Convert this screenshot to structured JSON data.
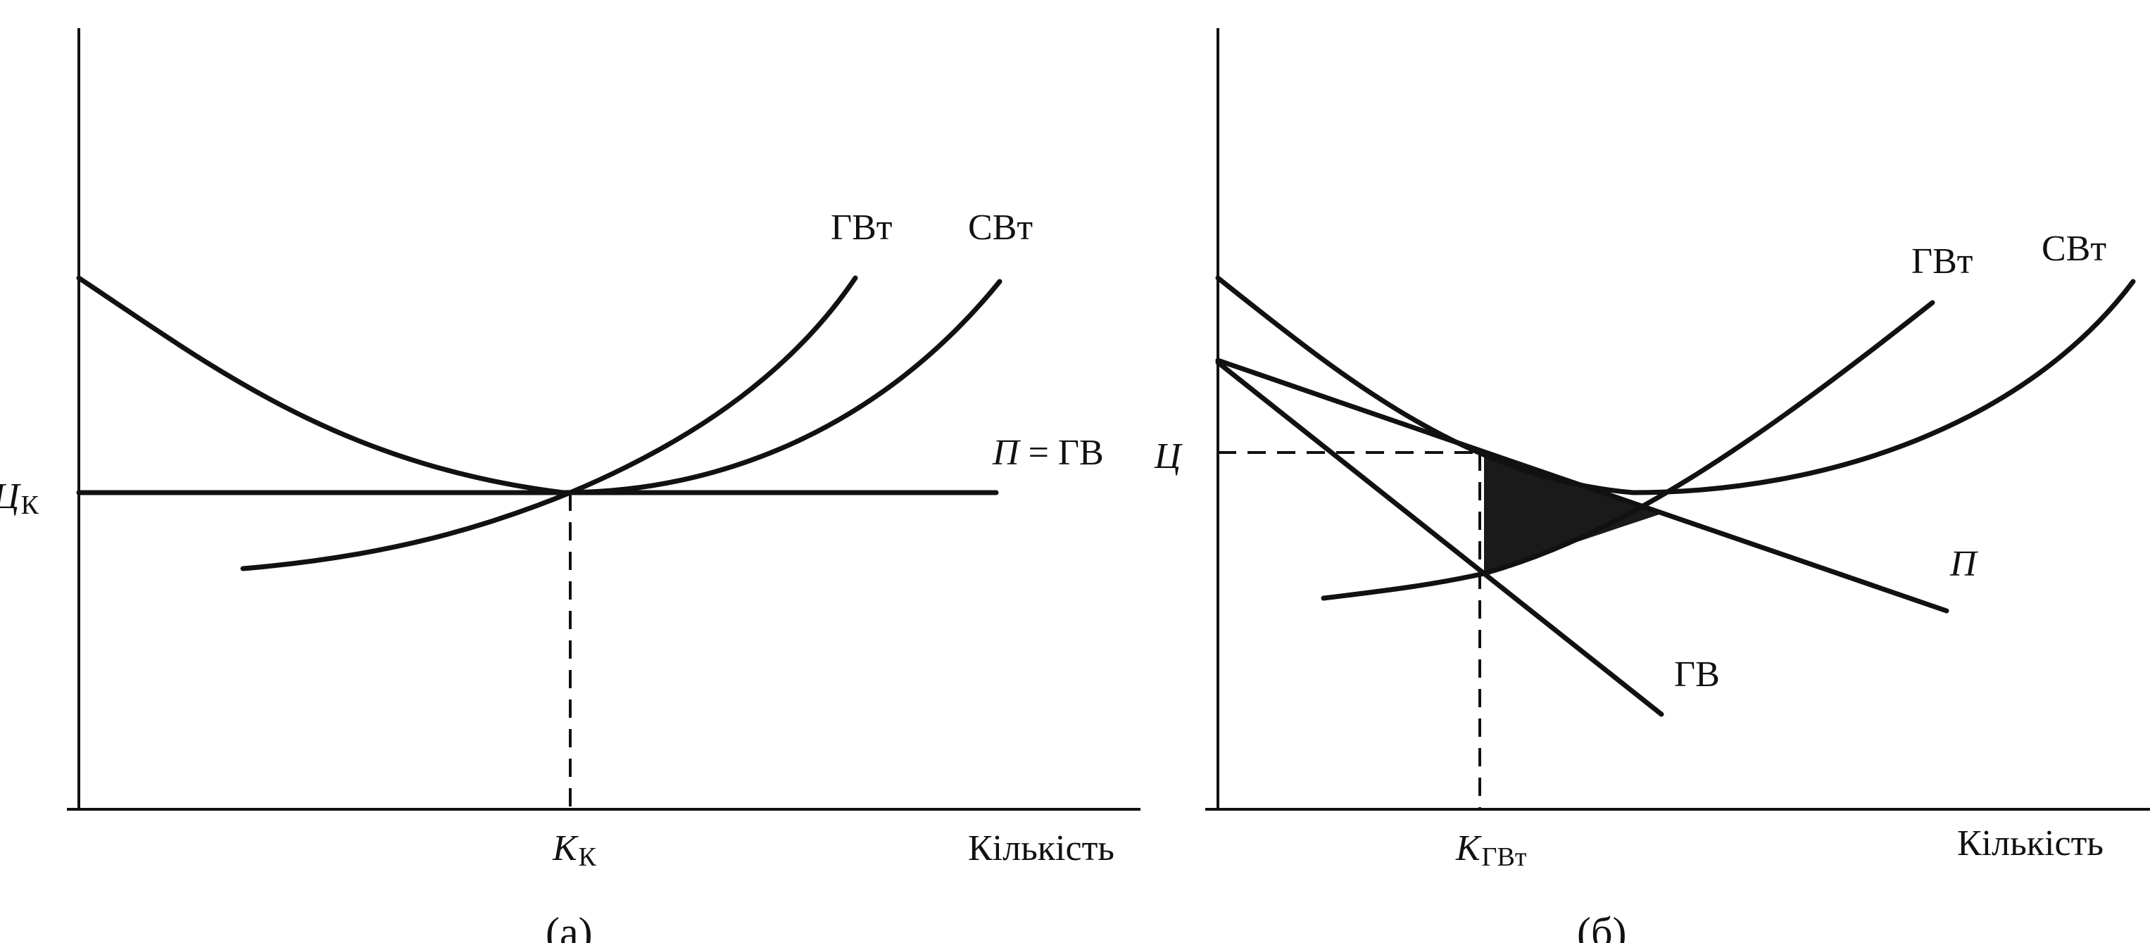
{
  "left": {
    "price_label": "Ц",
    "price_sub": "К",
    "curve_mc": "ГВт",
    "curve_ac": "СВт",
    "curve_d": "П",
    "curve_d_eq": " = ГВ",
    "qty_label": "К",
    "qty_sub": "К",
    "axis_x": "Кількість",
    "caption": "(а)"
  },
  "right": {
    "price_label": "Ц",
    "curve_mc": "ГВт",
    "curve_ac": "СВт",
    "curve_d": "П",
    "curve_mr": "ГВ",
    "qty_label": "К",
    "qty_sub": "ГВт",
    "axis_x": "Кількість",
    "caption": "(б)"
  }
}
